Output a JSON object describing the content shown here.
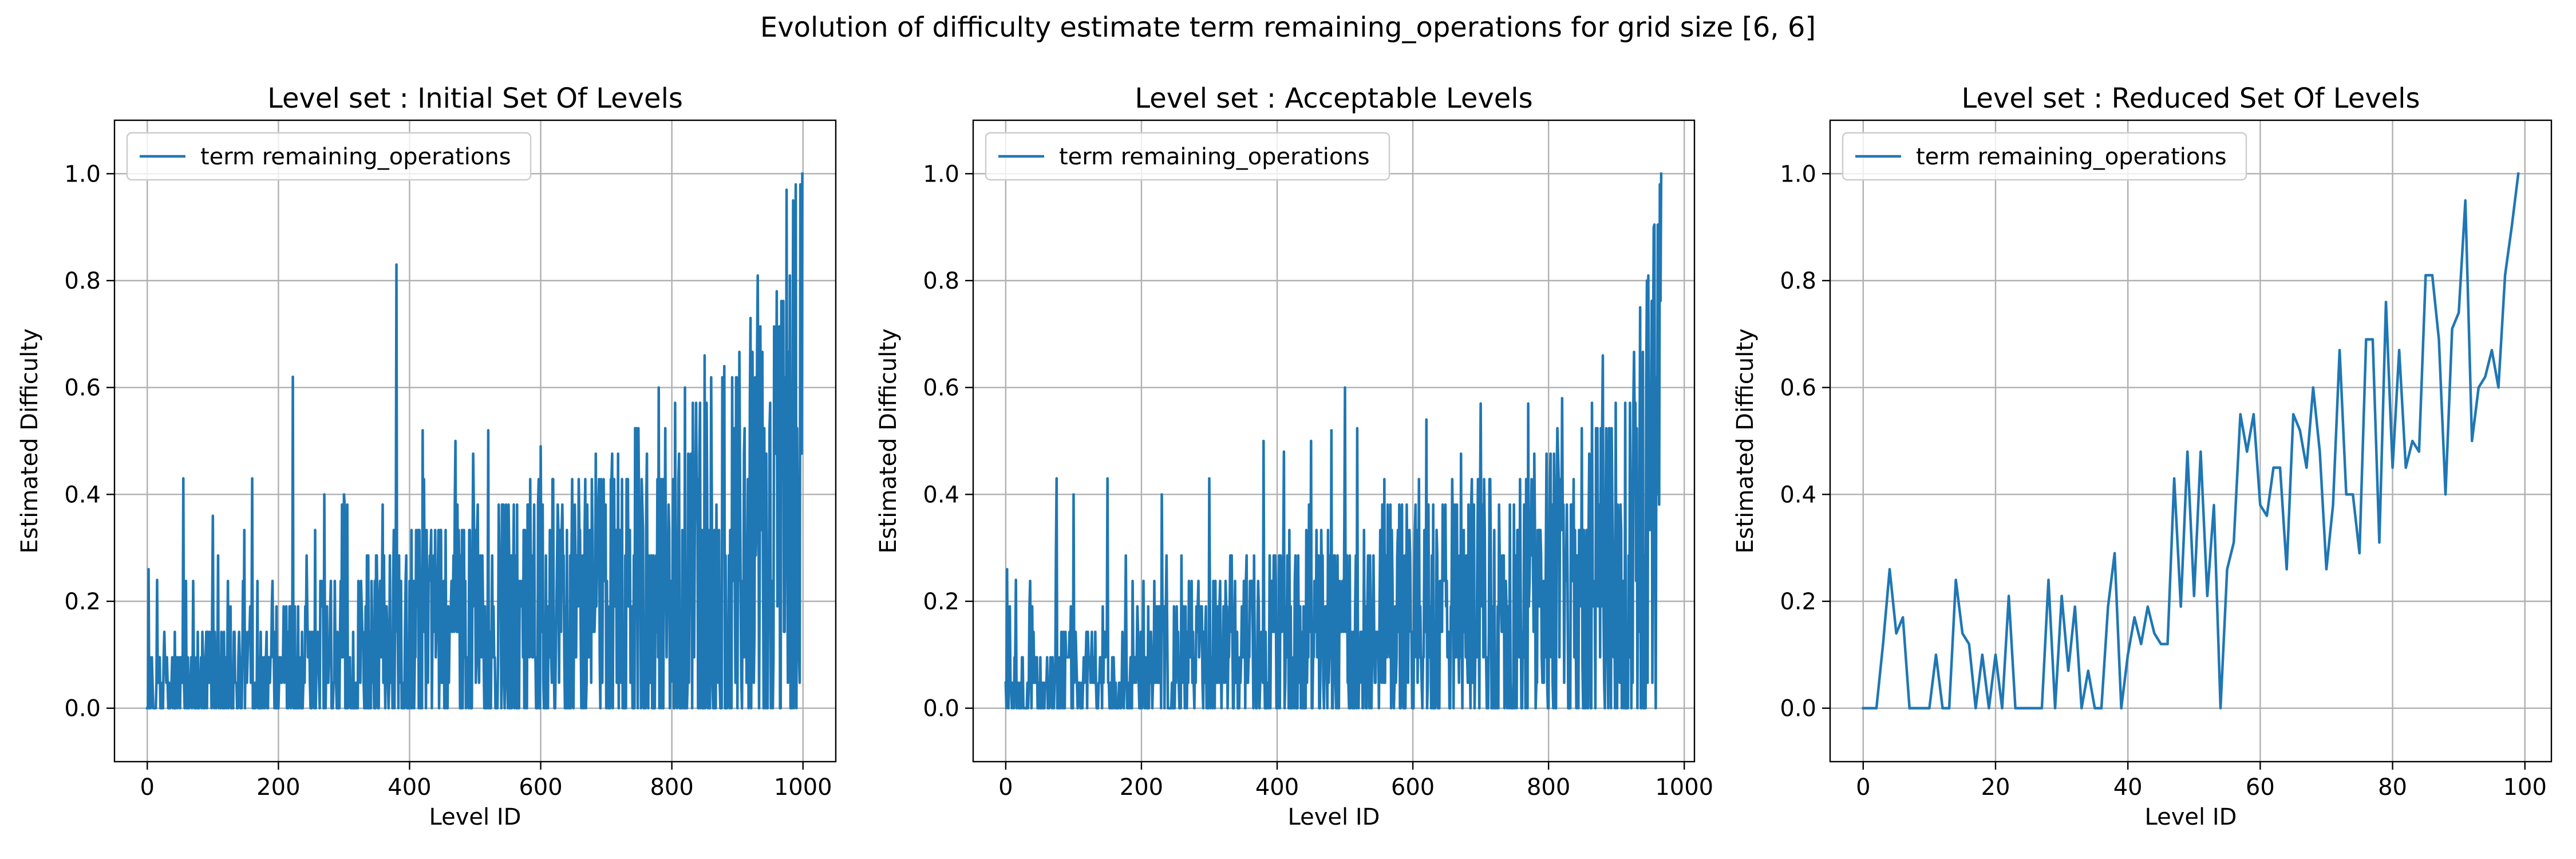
{
  "suptitle": "Evolution of difficulty estimate term remaining_operations for grid size [6, 6]",
  "colors": {
    "series": "#1f77b4",
    "grid": "#b0b0b0"
  },
  "chart_data": [
    {
      "type": "line",
      "title": "Level set : Initial Set Of Levels",
      "xlabel": "Level ID",
      "ylabel": "Estimated Difficulty",
      "xlim": [
        -50,
        1050
      ],
      "ylim": [
        -0.1,
        1.1
      ],
      "xticks": [
        0,
        200,
        400,
        600,
        800,
        1000
      ],
      "yticks": [
        0.0,
        0.2,
        0.4,
        0.6,
        0.8,
        1.0
      ],
      "xtick_labels": [
        "0",
        "200",
        "400",
        "600",
        "800",
        "1000"
      ],
      "ytick_labels": [
        "0.0",
        "0.2",
        "0.4",
        "0.6",
        "0.8",
        "1.0"
      ],
      "grid": true,
      "legend_position": "upper-left",
      "n_points": 1000,
      "series": [
        {
          "name": "term remaining_operations",
          "x_start": 0,
          "x_step": 1,
          "trend": [
            [
              0,
              0.05
            ],
            [
              100,
              0.07
            ],
            [
              200,
              0.1
            ],
            [
              300,
              0.13
            ],
            [
              400,
              0.17
            ],
            [
              500,
              0.2
            ],
            [
              600,
              0.22
            ],
            [
              700,
              0.25
            ],
            [
              800,
              0.28
            ],
            [
              900,
              0.33
            ],
            [
              950,
              0.4
            ],
            [
              1000,
              0.55
            ]
          ],
          "spikes": [
            [
              2,
              0.26
            ],
            [
              15,
              0.24
            ],
            [
              55,
              0.43
            ],
            [
              100,
              0.36
            ],
            [
              160,
              0.43
            ],
            [
              222,
              0.62
            ],
            [
              270,
              0.4
            ],
            [
              300,
              0.4
            ],
            [
              380,
              0.83
            ],
            [
              420,
              0.52
            ],
            [
              470,
              0.5
            ],
            [
              520,
              0.52
            ],
            [
              600,
              0.49
            ],
            [
              650,
              0.6
            ],
            [
              700,
              0.57
            ],
            [
              780,
              0.6
            ],
            [
              820,
              0.6
            ],
            [
              850,
              0.66
            ],
            [
              880,
              0.64
            ],
            [
              920,
              0.73
            ],
            [
              960,
              0.78
            ],
            [
              975,
              0.97
            ],
            [
              985,
              0.95
            ],
            [
              999,
              1.0
            ]
          ],
          "lows": [
            [
              390,
              0.0
            ],
            [
              560,
              0.0
            ],
            [
              650,
              0.0
            ],
            [
              700,
              0.0
            ],
            [
              760,
              0.0
            ],
            [
              800,
              0.05
            ],
            [
              840,
              0.0
            ],
            [
              870,
              0.15
            ],
            [
              905,
              0.2
            ]
          ]
        }
      ]
    },
    {
      "type": "line",
      "title": "Level set : Acceptable Levels",
      "xlabel": "Level ID",
      "ylabel": "Estimated Difficulty",
      "xlim": [
        -48,
        1015
      ],
      "ylim": [
        -0.1,
        1.1
      ],
      "xticks": [
        0,
        200,
        400,
        600,
        800,
        1000
      ],
      "yticks": [
        0.0,
        0.2,
        0.4,
        0.6,
        0.8,
        1.0
      ],
      "xtick_labels": [
        "0",
        "200",
        "400",
        "600",
        "800",
        "1000"
      ],
      "ytick_labels": [
        "0.0",
        "0.2",
        "0.4",
        "0.6",
        "0.8",
        "1.0"
      ],
      "grid": true,
      "legend_position": "upper-left",
      "n_points": 967,
      "series": [
        {
          "name": "term remaining_operations",
          "x_start": 0,
          "x_step": 1,
          "trend": [
            [
              0,
              0.04
            ],
            [
              100,
              0.06
            ],
            [
              200,
              0.09
            ],
            [
              300,
              0.12
            ],
            [
              400,
              0.15
            ],
            [
              500,
              0.18
            ],
            [
              600,
              0.2
            ],
            [
              700,
              0.22
            ],
            [
              800,
              0.24
            ],
            [
              880,
              0.27
            ],
            [
              930,
              0.33
            ],
            [
              955,
              0.45
            ],
            [
              966,
              0.7
            ]
          ],
          "spikes": [
            [
              2,
              0.26
            ],
            [
              15,
              0.24
            ],
            [
              75,
              0.43
            ],
            [
              100,
              0.4
            ],
            [
              150,
              0.43
            ],
            [
              230,
              0.4
            ],
            [
              300,
              0.43
            ],
            [
              380,
              0.5
            ],
            [
              410,
              0.48
            ],
            [
              450,
              0.5
            ],
            [
              480,
              0.52
            ],
            [
              500,
              0.6
            ],
            [
              620,
              0.54
            ],
            [
              700,
              0.57
            ],
            [
              770,
              0.57
            ],
            [
              820,
              0.58
            ],
            [
              850,
              0.64
            ],
            [
              880,
              0.66
            ],
            [
              935,
              0.75
            ],
            [
              945,
              0.8
            ],
            [
              955,
              0.9
            ],
            [
              966,
              1.0
            ]
          ],
          "lows": [
            [
              800,
              0.0
            ],
            [
              810,
              0.0
            ],
            [
              850,
              0.08
            ],
            [
              900,
              0.12
            ],
            [
              960,
              0.4
            ]
          ]
        }
      ]
    },
    {
      "type": "line",
      "title": "Level set : Reduced Set Of Levels",
      "xlabel": "Level ID",
      "ylabel": "Estimated Difficulty",
      "xlim": [
        -5,
        104
      ],
      "ylim": [
        -0.1,
        1.1
      ],
      "xticks": [
        0,
        20,
        40,
        60,
        80,
        100
      ],
      "yticks": [
        0.0,
        0.2,
        0.4,
        0.6,
        0.8,
        1.0
      ],
      "xtick_labels": [
        "0",
        "20",
        "40",
        "60",
        "80",
        "100"
      ],
      "ytick_labels": [
        "0.0",
        "0.2",
        "0.4",
        "0.6",
        "0.8",
        "1.0"
      ],
      "grid": true,
      "legend_position": "upper-left",
      "series": [
        {
          "name": "term remaining_operations",
          "x": [
            0,
            1,
            2,
            3,
            4,
            5,
            6,
            7,
            8,
            9,
            10,
            11,
            12,
            13,
            14,
            15,
            16,
            17,
            18,
            19,
            20,
            21,
            22,
            23,
            24,
            25,
            26,
            27,
            28,
            29,
            30,
            31,
            32,
            33,
            34,
            35,
            36,
            37,
            38,
            39,
            40,
            41,
            42,
            43,
            44,
            45,
            46,
            47,
            48,
            49,
            50,
            51,
            52,
            53,
            54,
            55,
            56,
            57,
            58,
            59,
            60,
            61,
            62,
            63,
            64,
            65,
            66,
            67,
            68,
            69,
            70,
            71,
            72,
            73,
            74,
            75,
            76,
            77,
            78,
            79,
            80,
            81,
            82,
            83,
            84,
            85,
            86,
            87,
            88,
            89,
            90,
            91,
            92,
            93,
            94,
            95,
            96,
            97,
            98,
            99
          ],
          "y": [
            0.0,
            0.0,
            0.0,
            0.12,
            0.26,
            0.14,
            0.17,
            0.0,
            0.0,
            0.0,
            0.0,
            0.1,
            0.0,
            0.0,
            0.24,
            0.14,
            0.12,
            0.0,
            0.1,
            0.0,
            0.1,
            0.0,
            0.21,
            0.0,
            0.0,
            0.0,
            0.0,
            0.0,
            0.24,
            0.0,
            0.21,
            0.07,
            0.19,
            0.0,
            0.07,
            0.0,
            0.0,
            0.19,
            0.29,
            0.0,
            0.1,
            0.17,
            0.12,
            0.19,
            0.14,
            0.12,
            0.12,
            0.43,
            0.19,
            0.48,
            0.21,
            0.48,
            0.21,
            0.38,
            0.0,
            0.26,
            0.31,
            0.55,
            0.48,
            0.55,
            0.38,
            0.36,
            0.45,
            0.45,
            0.26,
            0.55,
            0.52,
            0.45,
            0.6,
            0.48,
            0.26,
            0.38,
            0.67,
            0.4,
            0.4,
            0.29,
            0.69,
            0.69,
            0.31,
            0.76,
            0.45,
            0.67,
            0.45,
            0.5,
            0.48,
            0.81,
            0.81,
            0.69,
            0.4,
            0.71,
            0.74,
            0.95,
            0.5,
            0.6,
            0.62,
            0.67,
            0.6,
            0.81,
            0.9,
            1.0
          ]
        }
      ]
    }
  ]
}
